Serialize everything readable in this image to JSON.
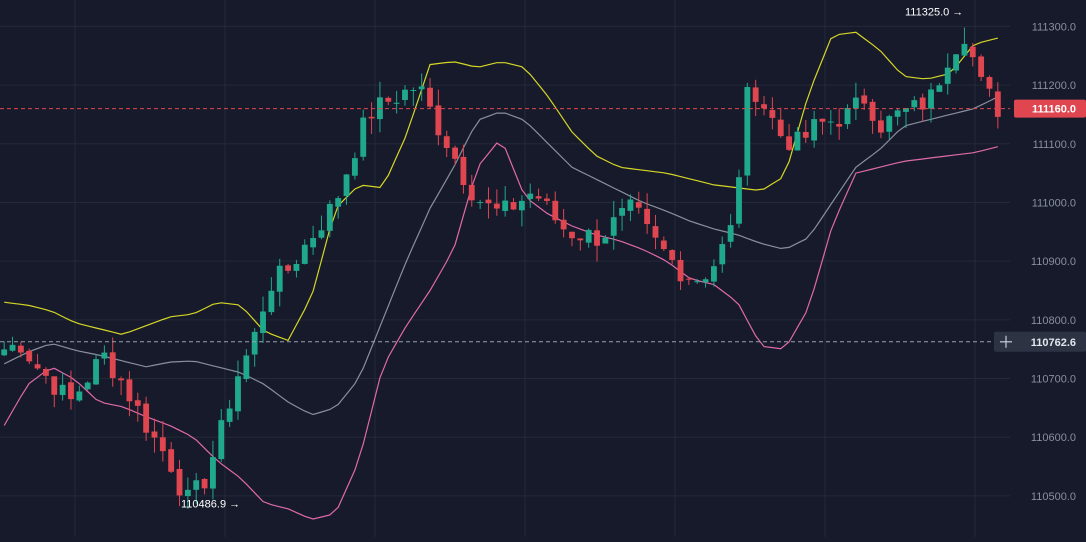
{
  "chart_data": {
    "type": "candlestick",
    "title": "",
    "xlabel": "",
    "ylabel": "",
    "ylim": [
      110430,
      111345
    ],
    "y_ticks": [
      "111300.0",
      "111200.0",
      "111100.0",
      "111000.0",
      "110900.0",
      "110800.0",
      "110700.0",
      "110600.0",
      "110500.0"
    ],
    "y_tick_values": [
      111300,
      111200,
      111100,
      111000,
      110900,
      110800,
      110700,
      110600,
      110500
    ],
    "grid": true,
    "current_price": {
      "label": "111160.0",
      "value": 111160
    },
    "crosshair_price": {
      "label": "110762.6",
      "value": 110762.6
    },
    "annotations": [
      {
        "name": "high-marker",
        "label": "111325.0 →",
        "value": 111325
      },
      {
        "name": "low-marker",
        "label": "110486.9 →",
        "value": 110486.9
      }
    ],
    "keypoints": [
      110750,
      110760,
      110720,
      110690,
      110660,
      110700,
      110740,
      110700,
      110650,
      110600,
      110560,
      110490,
      110520,
      110600,
      110700,
      110760,
      110860,
      110880,
      110920,
      110960,
      111000,
      111080,
      111150,
      111170,
      111185,
      111200,
      111140,
      111090,
      111030,
      110995,
      110980,
      111000,
      111020,
      110980,
      110950,
      110945,
      110940,
      110970,
      110990,
      110940,
      110910,
      110880,
      110870,
      110900,
      110960,
      111210,
      111160,
      111110,
      111100,
      111130,
      111140,
      111150,
      111180,
      111130,
      111150,
      111160,
      111180,
      111250,
      111290,
      111200,
      111160
    ],
    "upper_band_keypoints": [
      110830,
      110825,
      110815,
      110795,
      110785,
      110775,
      110790,
      110805,
      110810,
      110830,
      110825,
      110780,
      110765,
      110840,
      110990,
      111030,
      111025,
      111115,
      111235,
      111240,
      111230,
      111240,
      111230,
      111180,
      111120,
      111080,
      111060,
      111055,
      111050,
      111040,
      111030,
      111025,
      111020,
      111045,
      111185,
      111285,
      111290,
      111260,
      111215,
      111210,
      111220,
      111270,
      111280
    ],
    "middle_band_keypoints": [
      110725,
      110745,
      110760,
      110748,
      110740,
      110730,
      110720,
      110728,
      110730,
      110720,
      110710,
      110690,
      110660,
      110638,
      110650,
      110700,
      110800,
      110900,
      110990,
      111060,
      111140,
      111155,
      111140,
      111100,
      111060,
      111040,
      111020,
      111000,
      110985,
      110968,
      110955,
      110945,
      110930,
      110920,
      110940,
      111000,
      111060,
      111090,
      111130,
      111140,
      111150,
      111160,
      111180
    ],
    "lower_band_keypoints": [
      110620,
      110690,
      110720,
      110698,
      110660,
      110652,
      110635,
      110620,
      110600,
      110560,
      110530,
      110488,
      110478,
      110460,
      110470,
      110560,
      110720,
      110790,
      110850,
      110920,
      111060,
      111110,
      111010,
      110980,
      110960,
      110945,
      110935,
      110920,
      110900,
      110870,
      110860,
      110830,
      110755,
      110750,
      110820,
      110960,
      111050,
      111060,
      111070,
      111075,
      111080,
      111085,
      111095
    ],
    "series": [
      {
        "name": "",
        "color": "#e06aa8"
      },
      {
        "name": "",
        "color": "#d6d626"
      },
      {
        "name": "",
        "color": "#8a8fa0"
      }
    ],
    "colors": {
      "up": "#1fa88c",
      "down": "#e0464f",
      "background": "#161a2b",
      "grid": "#242938",
      "current_price": "#e0464f",
      "crosshair": "#3b4053"
    },
    "candle_count": 120
  }
}
